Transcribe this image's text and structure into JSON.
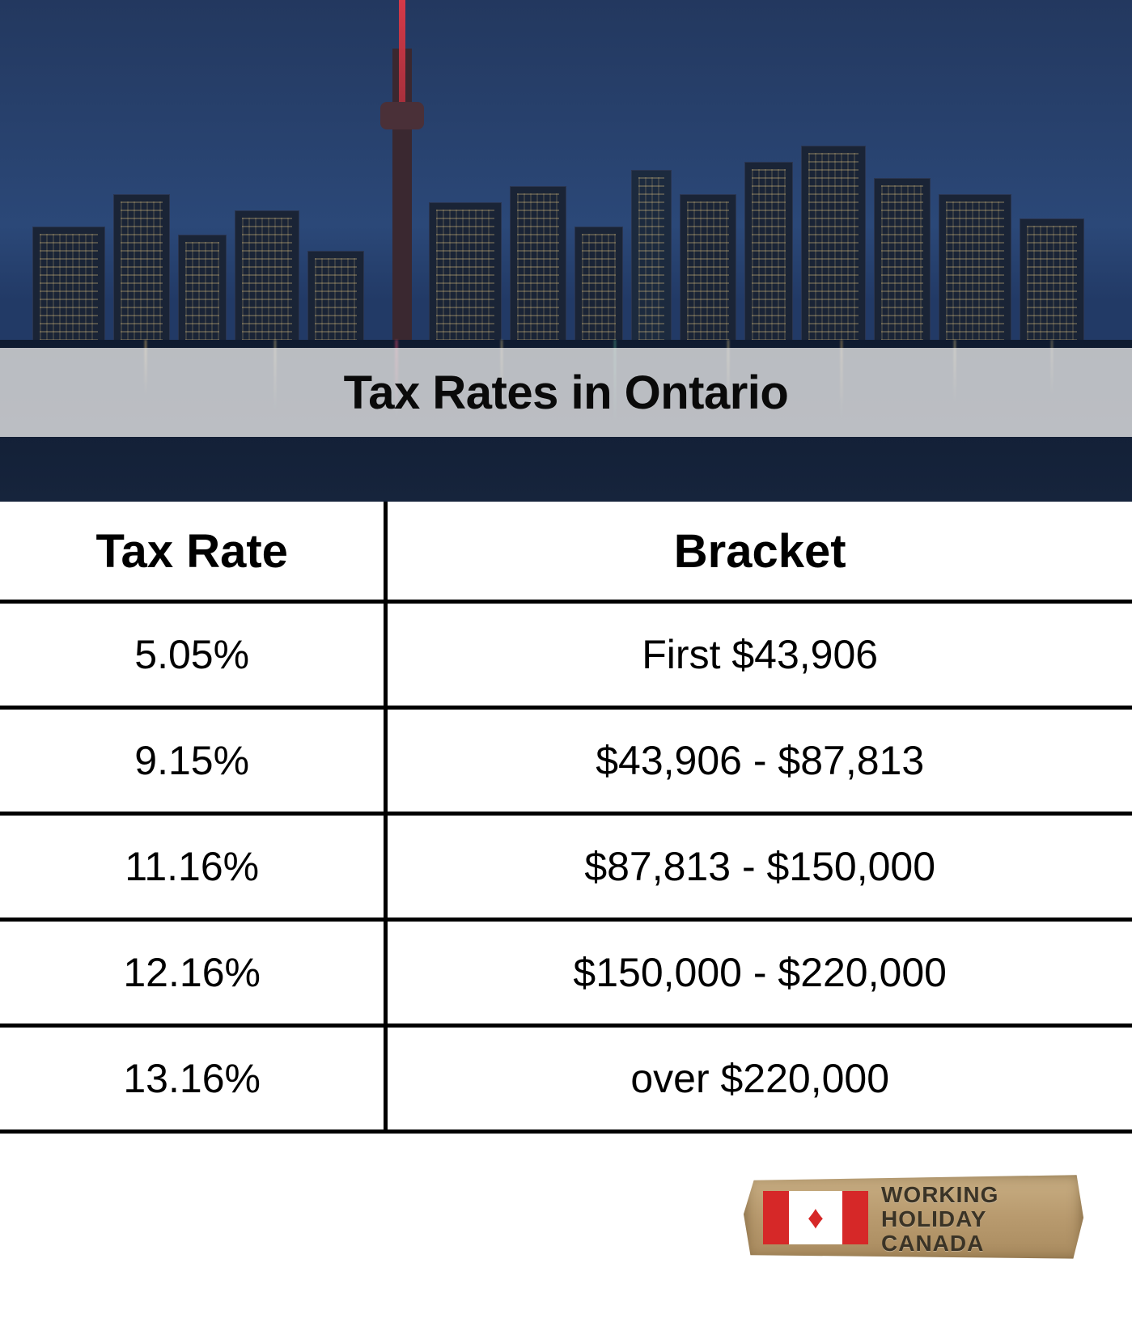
{
  "title": "Tax Rates in Ontario",
  "table": {
    "columns": [
      "Tax Rate",
      "Bracket"
    ],
    "rows": [
      [
        "5.05%",
        "First $43,906"
      ],
      [
        "9.15%",
        "$43,906 - $87,813"
      ],
      [
        "11.16%",
        "$87,813 - $150,000"
      ],
      [
        "12.16%",
        "$150,000 - $220,000"
      ],
      [
        "13.16%",
        "over $220,000"
      ]
    ],
    "header_fontsize": 58,
    "header_fontweight": 800,
    "cell_fontsize": 50,
    "cell_fontweight": 400,
    "border_color": "#000000",
    "border_width": 5,
    "text_color": "#000000",
    "background_color": "#ffffff"
  },
  "hero": {
    "description": "Toronto skyline at dusk with CN Tower, city lights reflected on water",
    "sky_gradient": [
      "#23385f",
      "#2b4878",
      "#223a66"
    ],
    "building_color": "#1a2436",
    "water_color": "#0f1b30",
    "cn_tower_spire_color": "#d93a4a",
    "title_overlay_bg": "rgba(235,235,235,0.78)",
    "title_fontsize": 58,
    "title_fontweight": 800,
    "title_color": "#0a0a0a"
  },
  "logo": {
    "line1": "WORKING",
    "line2": "HOLIDAY",
    "line3": "CANADA",
    "plank_color": "#b89a6e",
    "flag_red": "#d62828",
    "flag_white": "#ffffff",
    "text_color": "#3a3326",
    "text_fontsize": 28
  }
}
